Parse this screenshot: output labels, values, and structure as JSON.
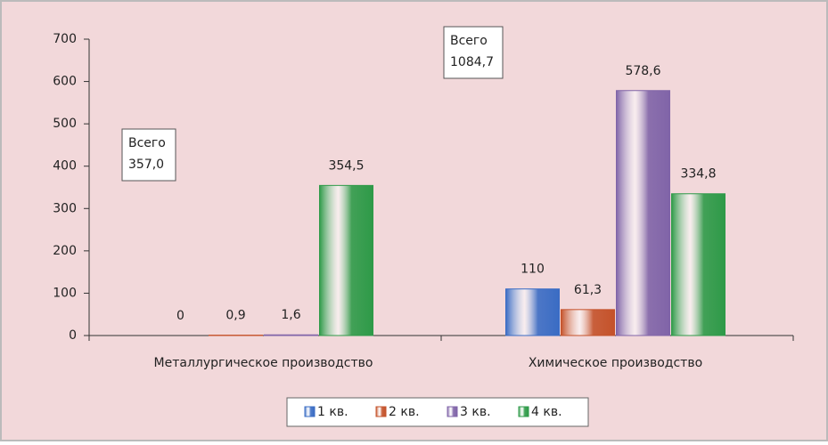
{
  "chart_data": {
    "type": "bar",
    "categories": [
      "Металлургическое производство",
      "Химическое производство"
    ],
    "series": [
      {
        "name": "1 кв.",
        "color": "#3a6cc4",
        "values": [
          0,
          110
        ],
        "value_labels": [
          "0",
          "110"
        ]
      },
      {
        "name": "2 кв.",
        "color": "#c4522a",
        "values": [
          0.9,
          61.3
        ],
        "value_labels": [
          "0,9",
          "61,3"
        ]
      },
      {
        "name": "3 кв.",
        "color": "#8064a8",
        "values": [
          1.6,
          578.6
        ],
        "value_labels": [
          "1,6",
          "578,6"
        ]
      },
      {
        "name": "4 кв.",
        "color": "#2e9a48",
        "values": [
          354.5,
          334.8
        ],
        "value_labels": [
          "354,5",
          "334,8"
        ]
      }
    ],
    "annotations": [
      {
        "lines": [
          "Всего",
          "357,0"
        ]
      },
      {
        "lines": [
          "Всего",
          "1084,7"
        ]
      }
    ],
    "ylim": [
      0,
      700
    ],
    "yticks": [
      0,
      100,
      200,
      300,
      400,
      500,
      600,
      700
    ],
    "legend": "bottom"
  }
}
